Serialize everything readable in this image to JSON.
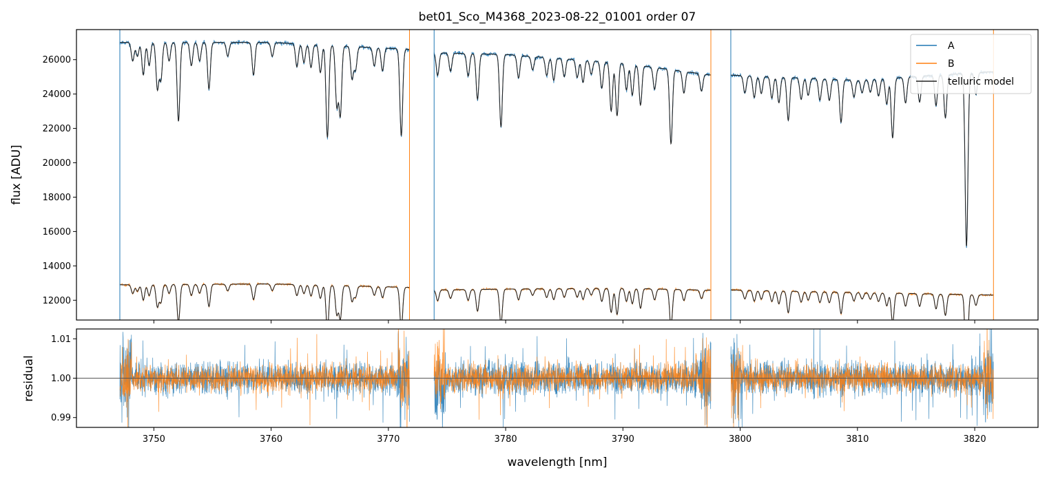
{
  "chart_data": {
    "type": "line",
    "title": "bet01_Sco_M4368_2023-08-22_01001  order 07",
    "xlabel": "wavelength [nm]",
    "xlim": [
      3743.4,
      3825.4
    ],
    "x_ticks": [
      3750,
      3760,
      3770,
      3780,
      3790,
      3800,
      3810,
      3820
    ],
    "x_tick_labels": [
      "3750",
      "3760",
      "3770",
      "3780",
      "3790",
      "3800",
      "3810",
      "3820"
    ],
    "segments": [
      [
        3747.1,
        3771.8
      ],
      [
        3773.9,
        3797.5
      ],
      [
        3799.2,
        3821.6
      ]
    ],
    "colors": {
      "A": "#1f77b4",
      "B": "#ff7f0e",
      "model": "#222222",
      "zero_line": "#555555"
    },
    "top_panel": {
      "ylabel": "flux [ADU]",
      "ylim": [
        10850,
        27750
      ],
      "y_ticks": [
        12000,
        14000,
        16000,
        18000,
        20000,
        22000,
        24000,
        26000
      ],
      "y_tick_labels": [
        "12000",
        "14000",
        "16000",
        "18000",
        "20000",
        "22000",
        "24000",
        "26000"
      ],
      "legend": {
        "position": "top-right",
        "entries": [
          "A",
          "B",
          "telluric model"
        ]
      },
      "series": [
        {
          "name": "A",
          "continuum": [
            [
              3747.1,
              27000
            ],
            [
              3760,
              27000
            ],
            [
              3771.8,
              26600
            ],
            [
              3773.9,
              26400
            ],
            [
              3780,
              26300
            ],
            [
              3790,
              25800
            ],
            [
              3797.5,
              25100
            ],
            [
              3799.2,
              25100
            ],
            [
              3810,
              24800
            ],
            [
              3821.6,
              25300
            ]
          ]
        },
        {
          "name": "B",
          "continuum": [
            [
              3747.1,
              12900
            ],
            [
              3760,
              12950
            ],
            [
              3771.8,
              12750
            ],
            [
              3773.9,
              12600
            ],
            [
              3780,
              12650
            ],
            [
              3790,
              12700
            ],
            [
              3797.5,
              12580
            ],
            [
              3799.2,
              12600
            ],
            [
              3810,
              12450
            ],
            [
              3821.6,
              12300
            ]
          ]
        }
      ],
      "absorption_lines": [
        [
          3748.2,
          0.04
        ],
        [
          3748.6,
          0.03
        ],
        [
          3749.1,
          0.07
        ],
        [
          3749.6,
          0.05
        ],
        [
          3750.3,
          0.1
        ],
        [
          3750.6,
          0.08
        ],
        [
          3751.3,
          0.04
        ],
        [
          3752.1,
          0.17
        ],
        [
          3753.2,
          0.05
        ],
        [
          3753.9,
          0.04
        ],
        [
          3754.7,
          0.1
        ],
        [
          3756.3,
          0.03
        ],
        [
          3758.5,
          0.07
        ],
        [
          3760.1,
          0.03
        ],
        [
          3762.2,
          0.05
        ],
        [
          3762.8,
          0.04
        ],
        [
          3763.4,
          0.05
        ],
        [
          3764.2,
          0.06
        ],
        [
          3764.8,
          0.2
        ],
        [
          3765.6,
          0.13
        ],
        [
          3765.9,
          0.15
        ],
        [
          3766.9,
          0.07
        ],
        [
          3767.2,
          0.05
        ],
        [
          3768.8,
          0.04
        ],
        [
          3769.5,
          0.05
        ],
        [
          3771.1,
          0.19
        ],
        [
          3774.2,
          0.05
        ],
        [
          3775.3,
          0.04
        ],
        [
          3776.8,
          0.05
        ],
        [
          3777.6,
          0.1
        ],
        [
          3779.6,
          0.16
        ],
        [
          3781.1,
          0.05
        ],
        [
          3782.3,
          0.03
        ],
        [
          3783.5,
          0.04
        ],
        [
          3784.1,
          0.05
        ],
        [
          3785.0,
          0.04
        ],
        [
          3786.1,
          0.04
        ],
        [
          3786.6,
          0.05
        ],
        [
          3787.3,
          0.03
        ],
        [
          3788.2,
          0.06
        ],
        [
          3789.0,
          0.11
        ],
        [
          3789.5,
          0.12
        ],
        [
          3790.3,
          0.06
        ],
        [
          3790.8,
          0.07
        ],
        [
          3791.5,
          0.09
        ],
        [
          3792.7,
          0.05
        ],
        [
          3794.1,
          0.17
        ],
        [
          3795.2,
          0.05
        ],
        [
          3796.7,
          0.04
        ],
        [
          3800.4,
          0.04
        ],
        [
          3801.2,
          0.05
        ],
        [
          3801.8,
          0.04
        ],
        [
          3802.7,
          0.05
        ],
        [
          3803.3,
          0.06
        ],
        [
          3804.1,
          0.1
        ],
        [
          3805.2,
          0.05
        ],
        [
          3805.8,
          0.04
        ],
        [
          3806.8,
          0.05
        ],
        [
          3807.6,
          0.05
        ],
        [
          3808.6,
          0.1
        ],
        [
          3809.7,
          0.04
        ],
        [
          3810.4,
          0.03
        ],
        [
          3811.1,
          0.03
        ],
        [
          3811.8,
          0.04
        ],
        [
          3812.5,
          0.06
        ],
        [
          3813.0,
          0.14
        ],
        [
          3814.1,
          0.06
        ],
        [
          3815.3,
          0.06
        ],
        [
          3816.7,
          0.07
        ],
        [
          3817.5,
          0.1
        ],
        [
          3819.3,
          0.4
        ],
        [
          3820.1,
          0.05
        ]
      ],
      "line_widths_nm": 0.12
    },
    "bottom_panel": {
      "ylabel": "residual",
      "ylim": [
        0.9875,
        1.0125
      ],
      "y_ticks": [
        0.99,
        1.0,
        1.01
      ],
      "y_tick_labels": [
        "0.99",
        "1.00",
        "1.01"
      ],
      "reference_line": 1.0,
      "series": [
        {
          "name": "A",
          "noise_amplitude": 0.0035
        },
        {
          "name": "B",
          "noise_amplitude": 0.0028
        }
      ]
    }
  }
}
